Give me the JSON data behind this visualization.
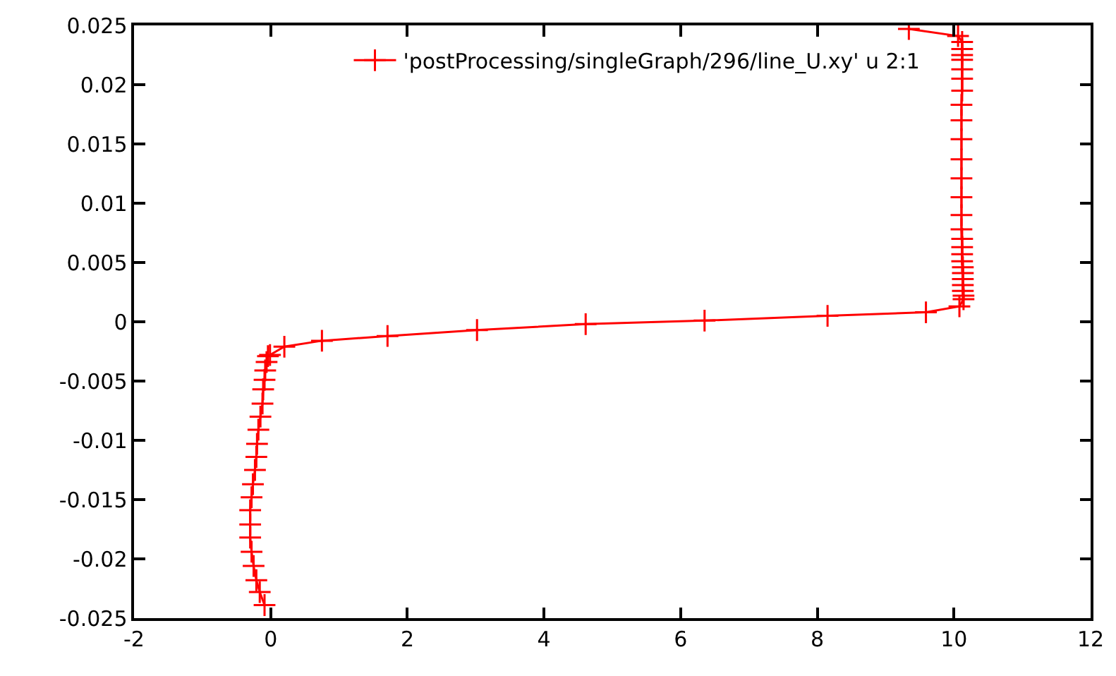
{
  "chart_data": {
    "type": "line",
    "xlim": [
      -2,
      12
    ],
    "ylim": [
      -0.025,
      0.025
    ],
    "xticks": [
      -2,
      0,
      2,
      4,
      6,
      8,
      10,
      12
    ],
    "yticks": [
      -0.025,
      -0.02,
      -0.015,
      -0.01,
      -0.005,
      0,
      0.005,
      0.01,
      0.015,
      0.02,
      0.025
    ],
    "grid": false,
    "legend": "top right",
    "marker": "cross",
    "line_style": "solid",
    "series": [
      {
        "name": "'postProcessing/singleGraph/296/line_U.xy' u 2:1",
        "color": "#ff0000",
        "x": [
          -0.09,
          -0.16,
          -0.21,
          -0.25,
          -0.28,
          -0.3,
          -0.3,
          -0.3,
          -0.28,
          -0.26,
          -0.23,
          -0.21,
          -0.2,
          -0.18,
          -0.15,
          -0.12,
          -0.11,
          -0.09,
          -0.08,
          -0.06,
          -0.04,
          -0.01,
          0.2,
          0.75,
          1.71,
          3.02,
          4.61,
          6.35,
          8.15,
          9.59,
          10.08,
          10.14,
          10.14,
          10.13,
          10.13,
          10.13,
          10.13,
          10.13,
          10.12,
          10.12,
          10.12,
          10.12,
          10.11,
          10.11,
          10.11,
          10.11,
          10.11,
          10.11,
          10.11,
          10.11,
          10.12,
          10.12,
          10.12,
          10.12,
          10.12,
          10.12,
          10.12,
          10.06,
          9.34
        ],
        "values": [
          -0.0239,
          -0.0228,
          -0.0218,
          -0.0206,
          -0.0194,
          -0.0182,
          -0.0171,
          -0.0159,
          -0.0148,
          -0.0137,
          -0.0125,
          -0.0114,
          -0.0103,
          -0.0091,
          -0.008,
          -0.0069,
          -0.0057,
          -0.0049,
          -0.0041,
          -0.0034,
          -0.0029,
          -0.0028,
          -0.0021,
          -0.0016,
          -0.0012,
          -0.0007,
          -0.0002,
          0.0001,
          0.0005,
          0.0008,
          0.0013,
          0.0019,
          0.0022,
          0.0026,
          0.0031,
          0.0036,
          0.0041,
          0.0046,
          0.0051,
          0.0057,
          0.0063,
          0.007,
          0.0078,
          0.009,
          0.0105,
          0.0121,
          0.0137,
          0.0154,
          0.017,
          0.0183,
          0.0195,
          0.0205,
          0.0213,
          0.0221,
          0.0225,
          0.023,
          0.0236,
          0.0241,
          0.0247
        ]
      }
    ]
  }
}
